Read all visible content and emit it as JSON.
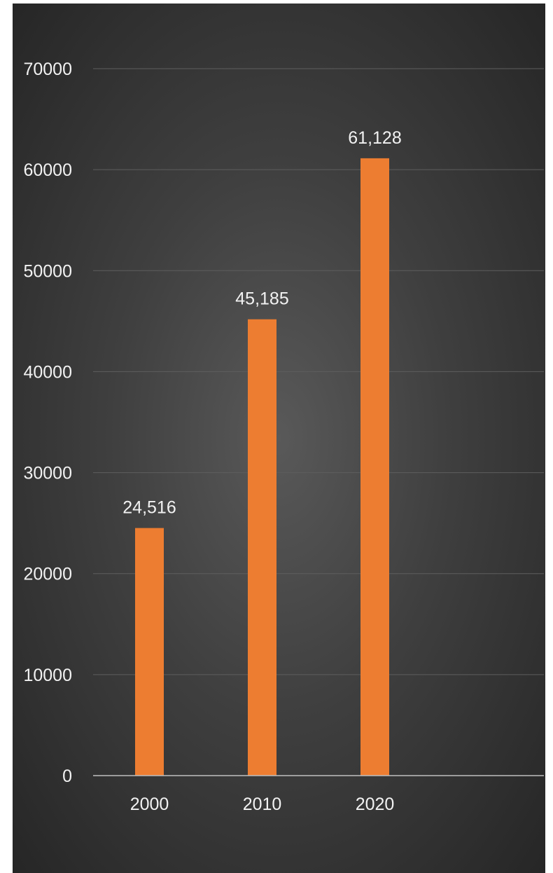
{
  "chart_data": {
    "type": "bar",
    "categories": [
      "2000",
      "2010",
      "2020"
    ],
    "values": [
      24516,
      45185,
      61128
    ],
    "data_labels": [
      "24,516",
      "45,185",
      "61,128"
    ],
    "y_ticks": [
      0,
      10000,
      20000,
      30000,
      40000,
      50000,
      60000,
      70000
    ],
    "ylim": [
      0,
      70000
    ],
    "grid": true,
    "legend": "none",
    "bar_color": "#ED7D31",
    "background_color": "#404040",
    "title": "",
    "xlabel": "",
    "ylabel": ""
  }
}
